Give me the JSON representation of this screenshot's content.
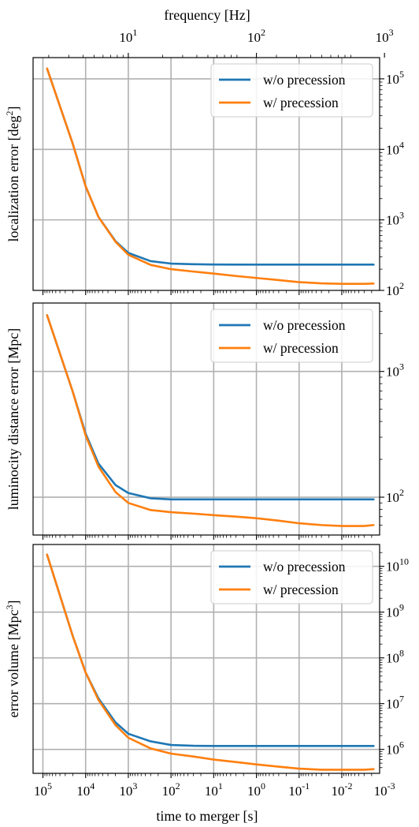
{
  "chart_data": {
    "type": "line",
    "shared_x": {
      "label": "time to merger [s]",
      "scale": "log",
      "reversed": true,
      "ticks": [
        {
          "base": "10",
          "exp": "5"
        },
        {
          "base": "10",
          "exp": "4"
        },
        {
          "base": "10",
          "exp": "3"
        },
        {
          "base": "10",
          "exp": "2"
        },
        {
          "base": "10",
          "exp": "1"
        },
        {
          "base": "10",
          "exp": "0"
        },
        {
          "base": "10",
          "exp": "-1"
        },
        {
          "base": "10",
          "exp": "-2"
        },
        {
          "base": "10",
          "exp": "-3"
        }
      ],
      "tick_values": [
        100000,
        10000,
        1000,
        100,
        10,
        1,
        0.1,
        0.01,
        0.001
      ],
      "range": [
        170000,
        0.0013
      ]
    },
    "top_axis": {
      "label": "frequency [Hz]",
      "scale": "log",
      "ticks": [
        {
          "base": "10",
          "exp": "1"
        },
        {
          "base": "10",
          "exp": "2"
        },
        {
          "base": "10",
          "exp": "3"
        }
      ],
      "tick_times_s": [
        1000,
        1,
        0.001
      ]
    },
    "panels": [
      {
        "ylabel": "localization error [deg",
        "ylabel_sup": "2",
        "ylabel_tail": "]",
        "yscale": "log",
        "ylim": [
          100,
          200000
        ],
        "yticks": [
          {
            "base": "10",
            "exp": "2",
            "value": 100
          },
          {
            "base": "10",
            "exp": "3",
            "value": 1000
          },
          {
            "base": "10",
            "exp": "4",
            "value": 10000
          },
          {
            "base": "10",
            "exp": "5",
            "value": 100000
          }
        ],
        "x": [
          80000,
          20000,
          10000,
          5000,
          2000,
          1000,
          300,
          100,
          30,
          10,
          3,
          1,
          0.3,
          0.1,
          0.03,
          0.01,
          0.003,
          0.0018
        ],
        "series": [
          {
            "name": "w/o precession",
            "color": "#1f77b4",
            "values": [
              140000,
              12000,
              3000,
              1100,
              500,
              340,
              260,
              240,
              235,
              233,
              232,
              232,
              232,
              232,
              232,
              232,
              232,
              232
            ]
          },
          {
            "name": "w/ precession",
            "color": "#ff7f0e",
            "values": [
              140000,
              12000,
              3000,
              1100,
              490,
              320,
              230,
              200,
              185,
              173,
              160,
              150,
              140,
              131,
              126,
              124,
              124,
              125
            ]
          }
        ]
      },
      {
        "ylabel": "luminocity distance error [Mpc]",
        "yscale": "log",
        "ylim": [
          50,
          3500
        ],
        "yticks": [
          {
            "base": "10",
            "exp": "2",
            "value": 100
          },
          {
            "base": "10",
            "exp": "3",
            "value": 1000
          }
        ],
        "x": [
          80000,
          20000,
          10000,
          5000,
          2000,
          1000,
          300,
          100,
          30,
          10,
          3,
          1,
          0.3,
          0.1,
          0.03,
          0.01,
          0.003,
          0.0018
        ],
        "series": [
          {
            "name": "w/o precession",
            "color": "#1f77b4",
            "values": [
              2800,
              690,
              320,
              185,
              125,
              108,
              98,
              96,
              96,
              96,
              96,
              96,
              96,
              96,
              96,
              96,
              96,
              96
            ]
          },
          {
            "name": "w/ precession",
            "color": "#ff7f0e",
            "values": [
              2800,
              690,
              310,
              175,
              110,
              90,
              79,
              76,
              74,
              72,
              70,
              68,
              65,
              62,
              60,
              59,
              59,
              60
            ]
          }
        ]
      },
      {
        "ylabel": "error volume [Mpc",
        "ylabel_sup": "3",
        "ylabel_tail": "]",
        "yscale": "log",
        "ylim": [
          300000,
          30000000000
        ],
        "yticks": [
          {
            "base": "10",
            "exp": "6",
            "value": 1000000
          },
          {
            "base": "10",
            "exp": "7",
            "value": 10000000
          },
          {
            "base": "10",
            "exp": "8",
            "value": 100000000
          },
          {
            "base": "10",
            "exp": "9",
            "value": 1000000000
          },
          {
            "base": "10",
            "exp": "10",
            "value": 10000000000
          }
        ],
        "x": [
          80000,
          20000,
          10000,
          5000,
          2000,
          1000,
          300,
          100,
          30,
          10,
          3,
          1,
          0.3,
          0.1,
          0.03,
          0.01,
          0.003,
          0.0018
        ],
        "series": [
          {
            "name": "w/o precession",
            "color": "#1f77b4",
            "values": [
              18000000000,
              300000000,
              48000000,
              13000000,
              3900000,
              2200000,
              1500000,
              1250000,
              1200000,
              1190000,
              1190000,
              1190000,
              1190000,
              1190000,
              1190000,
              1190000,
              1190000,
              1190000
            ]
          },
          {
            "name": "w/ precession",
            "color": "#ff7f0e",
            "values": [
              18000000000,
              300000000,
              48000000,
              12000000,
              3400000,
              1800000,
              1050000,
              810000,
              700000,
              600000,
              530000,
              470000,
              420000,
              380000,
              360000,
              360000,
              360000,
              370000
            ]
          }
        ]
      }
    ],
    "legend": {
      "placement": "top-right",
      "entries": [
        "w/o precession",
        "w/ precession"
      ]
    },
    "grid": true
  }
}
